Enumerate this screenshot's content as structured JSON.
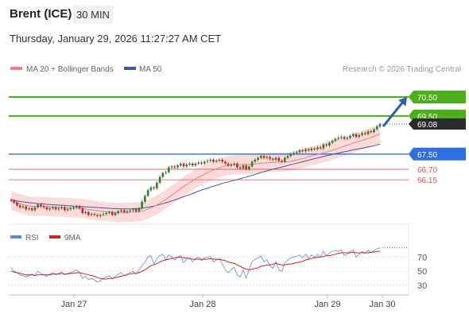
{
  "header": {
    "title": "Brent (ICE)",
    "timeframe": "30 MIN",
    "datetime": "Thursday, January 29, 2026 11:27:27 AM CET"
  },
  "legend": {
    "bollinger": "MA 20 + Bollinger Bands",
    "ma50": "MA 50",
    "credit": "Research © 2026 Trading Central",
    "rsi": "RSI",
    "ma9": "9MA"
  },
  "colors": {
    "up_candle": "#2e7d32",
    "down_candle": "#c62828",
    "ma20": "#f08080",
    "bollinger_fill": "#fbd5d5",
    "ma50": "#3a5fa0",
    "target": "#4caf1a",
    "pivot": "#2f6fe0",
    "support": "#e05555",
    "rsi": "#5b8bd8",
    "rsi_ma": "#d22222",
    "arrow": "#2e5fae"
  },
  "chart_data": [
    {
      "type": "candlestick",
      "title": "Brent (ICE)",
      "timeframe": "30 MIN",
      "x_labels": [
        "Jan 27",
        "Jan 28",
        "Jan 29",
        "Jan 30"
      ],
      "y_range": [
        63.9,
        71.5
      ],
      "last_price": "69.08",
      "levels": [
        {
          "label": "70.50",
          "value": 70.5,
          "kind": "target"
        },
        {
          "label": "69.50",
          "value": 69.5,
          "kind": "target"
        },
        {
          "label": "67.50",
          "value": 67.5,
          "kind": "pivot"
        },
        {
          "label": "66.70",
          "value": 66.7,
          "kind": "support"
        },
        {
          "label": "66.15",
          "value": 66.15,
          "kind": "support"
        }
      ],
      "arrow": {
        "from": 68.95,
        "to": 70.5
      },
      "closes": [
        65.05,
        64.95,
        64.8,
        64.7,
        64.75,
        64.6,
        64.65,
        64.55,
        64.7,
        64.85,
        64.75,
        64.7,
        64.6,
        64.65,
        64.7,
        64.6,
        64.65,
        64.7,
        64.55,
        64.6,
        64.65,
        64.7,
        64.75,
        64.65,
        64.4,
        64.45,
        64.3,
        64.35,
        64.3,
        64.25,
        64.3,
        64.35,
        64.4,
        64.45,
        64.3,
        64.4,
        64.5,
        64.55,
        64.45,
        64.5,
        64.55,
        64.6,
        64.5,
        64.65,
        65.0,
        65.3,
        65.6,
        65.75,
        65.7,
        66.0,
        66.3,
        66.5,
        66.55,
        66.8,
        66.85,
        66.8,
        66.9,
        67.0,
        66.85,
        66.95,
        67.0,
        66.9,
        67.0,
        67.05,
        67.0,
        67.1,
        67.15,
        67.2,
        67.1,
        67.15,
        67.2,
        67.1,
        67.0,
        66.9,
        66.95,
        67.0,
        66.8,
        66.75,
        66.9,
        66.7,
        66.85,
        67.1,
        67.2,
        67.3,
        67.4,
        67.3,
        67.35,
        67.25,
        67.2,
        67.3,
        67.15,
        67.1,
        67.3,
        67.4,
        67.5,
        67.55,
        67.6,
        67.7,
        67.65,
        67.75,
        67.7,
        67.8,
        67.75,
        67.85,
        67.8,
        68.0,
        67.95,
        68.1,
        68.2,
        68.3,
        68.35,
        68.4,
        68.3,
        68.35,
        68.45,
        68.55,
        68.4,
        68.5,
        68.6,
        68.55,
        68.7,
        68.65,
        68.8,
        68.95,
        69.08
      ],
      "ma20": [
        65.05,
        65.0,
        64.95,
        64.9,
        64.86,
        64.81,
        64.78,
        64.75,
        64.75,
        64.76,
        64.76,
        64.75,
        64.74,
        64.73,
        64.72,
        64.71,
        64.71,
        64.71,
        64.7,
        64.69,
        64.67,
        64.66,
        64.66,
        64.66,
        64.64,
        64.62,
        64.59,
        64.57,
        64.55,
        64.53,
        64.5,
        64.49,
        64.47,
        64.46,
        64.45,
        64.44,
        64.43,
        64.43,
        64.43,
        64.43,
        64.44,
        64.45,
        64.46,
        64.47,
        64.5,
        64.55,
        64.61,
        64.68,
        64.74,
        64.83,
        64.92,
        65.02,
        65.12,
        65.23,
        65.34,
        65.45,
        65.56,
        65.68,
        65.79,
        65.9,
        66.01,
        66.1,
        66.2,
        66.28,
        66.36,
        66.44,
        66.52,
        66.59,
        66.66,
        66.72,
        66.78,
        66.83,
        66.86,
        66.89,
        66.92,
        66.93,
        66.94,
        66.95,
        66.96,
        66.96,
        66.96,
        66.97,
        66.98,
        67.0,
        67.02,
        67.03,
        67.04,
        67.05,
        67.06,
        67.07,
        67.08,
        67.08,
        67.09,
        67.1,
        67.12,
        67.15,
        67.19,
        67.23,
        67.27,
        67.31,
        67.36,
        67.4,
        67.44,
        67.48,
        67.52,
        67.57,
        67.6,
        67.65,
        67.7,
        67.75,
        67.8,
        67.86,
        67.91,
        67.97,
        68.02,
        68.08,
        68.12,
        68.17,
        68.22,
        68.27,
        68.32,
        68.37,
        68.43,
        68.5,
        68.57
      ],
      "ma50": [
        65.1,
        65.07,
        65.04,
        65.01,
        64.99,
        64.97,
        64.95,
        64.93,
        64.92,
        64.9,
        64.89,
        64.88,
        64.86,
        64.85,
        64.84,
        64.83,
        64.82,
        64.81,
        64.8,
        64.79,
        64.78,
        64.77,
        64.76,
        64.75,
        64.74,
        64.73,
        64.72,
        64.71,
        64.7,
        64.69,
        64.68,
        64.67,
        64.66,
        64.65,
        64.64,
        64.63,
        64.63,
        64.62,
        64.62,
        64.62,
        64.62,
        64.62,
        64.63,
        64.64,
        64.66,
        64.68,
        64.71,
        64.74,
        64.77,
        64.81,
        64.85,
        64.89,
        64.94,
        64.99,
        65.04,
        65.09,
        65.14,
        65.2,
        65.26,
        65.31,
        65.37,
        65.43,
        65.49,
        65.55,
        65.61,
        65.66,
        65.71,
        65.76,
        65.81,
        65.86,
        65.91,
        65.96,
        66.0,
        66.04,
        66.08,
        66.12,
        66.16,
        66.2,
        66.25,
        66.29,
        66.34,
        66.38,
        66.43,
        66.48,
        66.53,
        66.57,
        66.62,
        66.66,
        66.7,
        66.74,
        66.78,
        66.82,
        66.86,
        66.9,
        66.94,
        66.98,
        67.02,
        67.06,
        67.1,
        67.14,
        67.18,
        67.22,
        67.26,
        67.3,
        67.33,
        67.37,
        67.41,
        67.44,
        67.48,
        67.52,
        67.55,
        67.59,
        67.62,
        67.65,
        67.69,
        67.72,
        67.75,
        67.78,
        67.81,
        67.84,
        67.87,
        67.9,
        67.94,
        67.98,
        68.02
      ],
      "bb_width": 0.5
    },
    {
      "type": "line",
      "title": "RSI",
      "series_names": [
        "RSI",
        "9MA"
      ],
      "y_ticks": [
        "70",
        "50",
        "30"
      ],
      "y_range": [
        20,
        85
      ],
      "rsi": [
        55,
        50,
        48,
        45,
        44,
        42,
        44,
        46,
        44,
        50,
        47,
        45,
        43,
        46,
        48,
        45,
        47,
        49,
        45,
        47,
        48,
        50,
        52,
        48,
        40,
        43,
        38,
        40,
        38,
        35,
        37,
        40,
        42,
        44,
        39,
        43,
        46,
        48,
        44,
        46,
        48,
        50,
        46,
        52,
        58,
        63,
        70,
        72,
        60,
        68,
        72,
        74,
        66,
        73,
        70,
        66,
        70,
        72,
        62,
        67,
        69,
        63,
        68,
        70,
        65,
        69,
        70,
        71,
        63,
        66,
        68,
        60,
        52,
        48,
        52,
        56,
        45,
        42,
        52,
        40,
        52,
        64,
        67,
        69,
        72,
        63,
        66,
        58,
        54,
        64,
        52,
        50,
        62,
        66,
        69,
        70,
        71,
        73,
        69,
        74,
        68,
        73,
        69,
        74,
        70,
        78,
        72,
        76,
        78,
        79,
        78,
        80,
        72,
        74,
        78,
        80,
        70,
        74,
        78,
        75,
        80,
        76,
        79,
        82,
        83
      ],
      "rsi_ma": [
        50,
        49,
        48,
        47,
        46,
        45,
        45,
        45,
        44,
        45,
        45,
        45,
        45,
        45,
        46,
        46,
        46,
        47,
        46,
        46,
        47,
        47,
        48,
        48,
        47,
        46,
        45,
        44,
        43,
        41,
        40,
        39,
        39,
        40,
        40,
        41,
        42,
        43,
        44,
        45,
        46,
        47,
        47,
        48,
        50,
        52,
        55,
        58,
        59,
        61,
        63,
        65,
        66,
        67,
        68,
        69,
        70,
        70,
        69,
        69,
        68,
        67,
        67,
        67,
        67,
        67,
        67,
        68,
        67,
        67,
        67,
        66,
        65,
        63,
        62,
        61,
        59,
        57,
        55,
        53,
        52,
        53,
        54,
        55,
        57,
        58,
        59,
        59,
        60,
        61,
        60,
        59,
        59,
        60,
        60,
        61,
        62,
        63,
        64,
        66,
        67,
        68,
        69,
        70,
        70,
        71,
        72,
        72,
        73,
        74,
        75,
        76,
        76,
        76,
        76,
        77,
        76,
        76,
        76,
        76,
        76,
        77,
        77,
        78,
        78
      ]
    }
  ]
}
